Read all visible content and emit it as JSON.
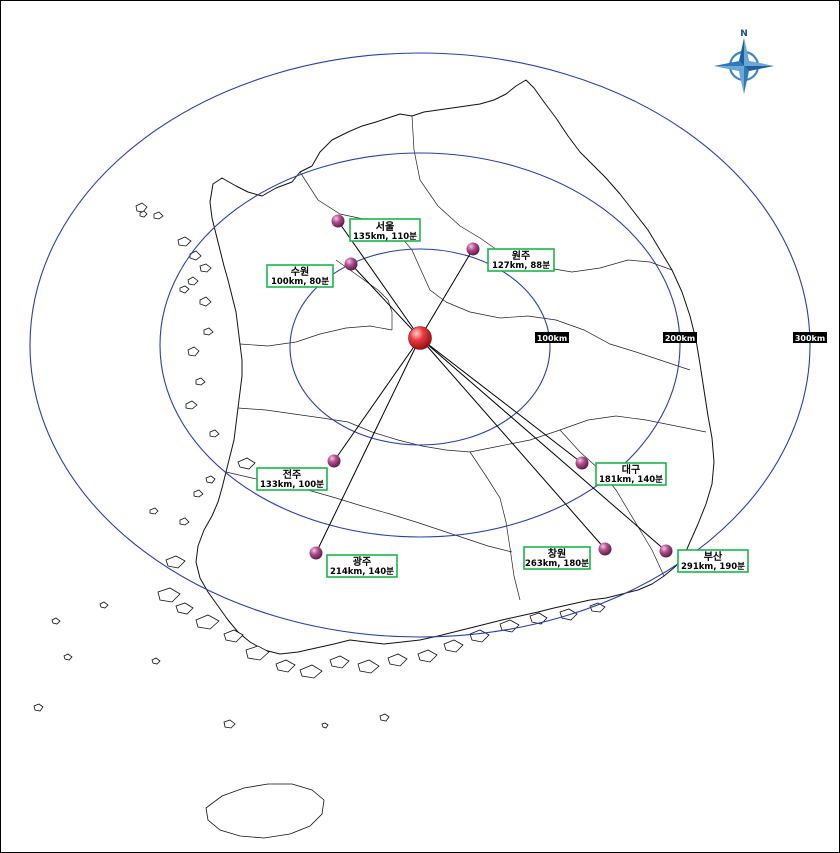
{
  "center": {
    "label_lines": [
      "",
      "",
      ""
    ]
  },
  "compass": {
    "north_label": "N"
  },
  "rings": [
    {
      "label": "100km",
      "color": "#2740a8"
    },
    {
      "label": "200km",
      "color": "#2740a8"
    },
    {
      "label": "300km",
      "color": "#2740a8"
    }
  ],
  "cities": [
    {
      "id": "seoul",
      "name": "서울",
      "info": "135km, 110분"
    },
    {
      "id": "suwon",
      "name": "수원",
      "info": "100km, 80분"
    },
    {
      "id": "wonju",
      "name": "원주",
      "info": "127km, 88분"
    },
    {
      "id": "jeonju",
      "name": "전주",
      "info": "133km, 100분"
    },
    {
      "id": "daegu",
      "name": "대구",
      "info": "181km, 140분"
    },
    {
      "id": "gwangju",
      "name": "광주",
      "info": "214km, 140분"
    },
    {
      "id": "changwon",
      "name": "창원",
      "info": "263km, 180분"
    },
    {
      "id": "busan",
      "name": "부산",
      "info": "291km, 190분"
    }
  ],
  "colors": {
    "box_border": "#19b54a",
    "ring": "#2740a8",
    "marker": "#a84a86",
    "center": "#e8323a"
  }
}
